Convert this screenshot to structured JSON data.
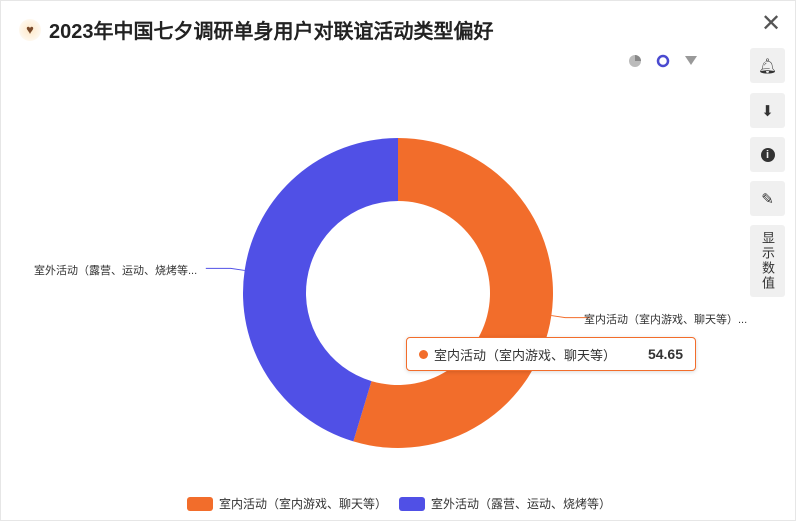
{
  "title": "2023年中国七夕调研单身用户对联谊活动类型偏好",
  "toolbar": {
    "notify": "bell-icon",
    "download": "download-icon",
    "info": "info-icon",
    "edit": "pencil-icon",
    "show_values": "显示数值"
  },
  "chart_data": {
    "type": "pie",
    "donut": true,
    "categories": [
      "室内活动（室内游戏、聊天等）",
      "室外活动（露营、运动、烧烤等）"
    ],
    "values": [
      54.65,
      45.35
    ],
    "colors": [
      "#f26d2b",
      "#5050e6"
    ],
    "slice_labels": [
      "室内活动（室内游戏、聊天等）...",
      "室外活动（露营、运动、烧烤等..."
    ],
    "legend_position": "bottom",
    "tooltip": {
      "label": "室内活动（室内游戏、聊天等）",
      "value": "54.65"
    }
  }
}
